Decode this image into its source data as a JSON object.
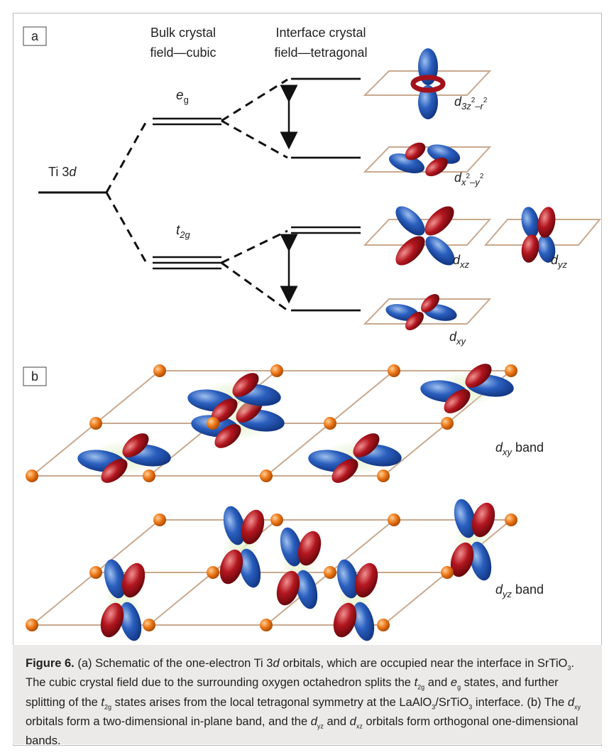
{
  "panel_a": {
    "label": "a",
    "col_bulk_line1": "Bulk crystal",
    "col_bulk_line2": "field—cubic",
    "col_interface_line1": "Interface crystal",
    "col_interface_line2": "field—tetragonal",
    "ti_level": "Ti 3",
    "ti_level_italic": "d",
    "eg_main": "e",
    "eg_sub": "g",
    "t2g_main": "t",
    "t2g_sub": "2g",
    "orb_z2_d": "d",
    "orb_z2_sub": "3z",
    "orb_z2_sup1": "2",
    "orb_z2_mid": "–r",
    "orb_z2_sup2": "2",
    "orb_x2y2_d": "d",
    "orb_x2y2_sub": "x",
    "orb_x2y2_sup1": "2",
    "orb_x2y2_mid": "–y",
    "orb_x2y2_sup2": "2",
    "orb_xz_d": "d",
    "orb_xz_sub": "xz",
    "orb_yz_d": "d",
    "orb_yz_sub": "yz",
    "orb_xy_d": "d",
    "orb_xy_sub": "xy"
  },
  "panel_b": {
    "label": "b",
    "dxy_d": "d",
    "dxy_sub": "xy",
    "dxy_band": " band",
    "dyz_d": "d",
    "dyz_sub": "yz",
    "dyz_band": " band"
  },
  "caption": {
    "fig_label": "Figure 6.",
    "t1": " (a) Schematic of the one-electron Ti 3",
    "t1_i": "d",
    "t2": " orbitals, which are occupied near the interface in SrTiO",
    "t2_sub": "3",
    "t3": ". The cubic crystal field due to the surrounding oxygen octahedron splits the ",
    "t3_i": "t",
    "t3_sub": "2g",
    "t4": " and ",
    "t4_i": "e",
    "t4_sub": "g",
    "t5": " states, and further splitting of the ",
    "t5_i": "t",
    "t5_sub": "2g",
    "t6": " states arises from the local tetragonal symmetry at the LaAlO",
    "t6_sub": "3",
    "t7": "/SrTiO",
    "t7_sub": "3",
    "t8": " interface. (b) The ",
    "t8_i": "d",
    "t8_sub": "xy",
    "t9": " orbitals form a two-dimensional in-plane band, and the ",
    "t9_i": "d",
    "t9_sub": "yz",
    "t10": " and ",
    "t10_i": "d",
    "t10_sub": "xz",
    "t11": " orbitals form orthogonal one-dimensional bands."
  },
  "colors": {
    "blue_lobe": "#1f4fa8",
    "red_lobe": "#a3121b",
    "atom_orange": "#ee7a1a",
    "plane_line": "#c8a98f",
    "level_line": "#111111"
  }
}
